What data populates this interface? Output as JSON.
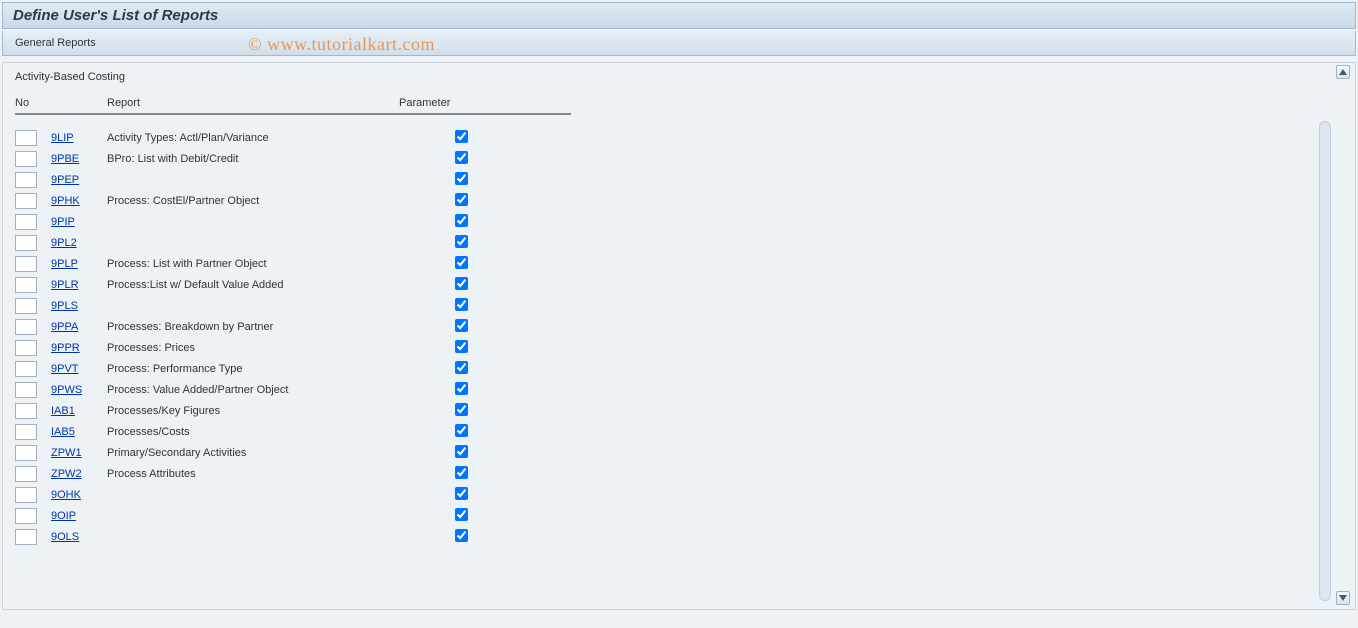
{
  "header": {
    "title": "Define User's List of Reports",
    "subtitle": "General Reports"
  },
  "section": {
    "title": "Activity-Based Costing",
    "columns": {
      "no": "No",
      "report": "Report",
      "parameter": "Parameter"
    },
    "rows": [
      {
        "code": "9LIP",
        "desc": "Activity Types: Actl/Plan/Variance",
        "param": true
      },
      {
        "code": "9PBE",
        "desc": "BPro: List with Debit/Credit",
        "param": true
      },
      {
        "code": "9PEP",
        "desc": "",
        "param": true
      },
      {
        "code": "9PHK",
        "desc": "Process: CostEl/Partner Object",
        "param": true
      },
      {
        "code": "9PIP",
        "desc": "",
        "param": true
      },
      {
        "code": "9PL2",
        "desc": "",
        "param": true
      },
      {
        "code": "9PLP",
        "desc": "Process: List with Partner Object",
        "param": true
      },
      {
        "code": "9PLR",
        "desc": "Process:List w/ Default Value Added",
        "param": true
      },
      {
        "code": "9PLS",
        "desc": "",
        "param": true
      },
      {
        "code": "9PPA",
        "desc": "Processes: Breakdown by Partner",
        "param": true
      },
      {
        "code": "9PPR",
        "desc": "Processes: Prices",
        "param": true
      },
      {
        "code": "9PVT",
        "desc": "Process: Performance Type",
        "param": true
      },
      {
        "code": "9PWS",
        "desc": "Process: Value Added/Partner Object",
        "param": true
      },
      {
        "code": "IAB1",
        "desc": "Processes/Key Figures",
        "param": true
      },
      {
        "code": "IAB5",
        "desc": "Processes/Costs",
        "param": true
      },
      {
        "code": "ZPW1",
        "desc": "Primary/Secondary Activities",
        "param": true
      },
      {
        "code": "ZPW2",
        "desc": "Process Attributes",
        "param": true
      },
      {
        "code": "9OHK",
        "desc": "",
        "param": true
      },
      {
        "code": "9OIP",
        "desc": "",
        "param": true
      },
      {
        "code": "9OLS",
        "desc": "",
        "param": true
      }
    ]
  },
  "watermark": "© www.tutorialkart.com",
  "colors": {
    "title_bg_top": "#e0ebf3",
    "title_bg_bottom": "#c7dae9",
    "content_bg": "#edf2f7",
    "link_color": "#0034a6",
    "watermark_color": "#e88b3a"
  }
}
